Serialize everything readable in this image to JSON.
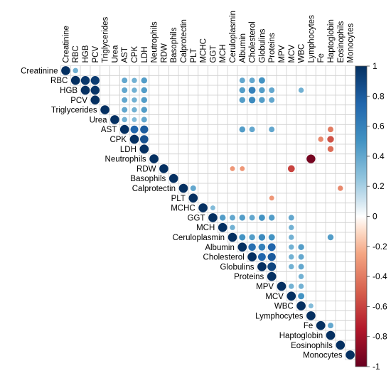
{
  "chart_data": {
    "type": "heatmap",
    "style": "upper-triangle correlation plot with circles sized and colored by coefficient",
    "variables": [
      "Creatinine",
      "RBC",
      "HGB",
      "PCV",
      "Triglycerides",
      "Urea",
      "AST",
      "CPK",
      "LDH",
      "Neutrophils",
      "RDW",
      "Basophils",
      "Calprotectin",
      "PLT",
      "MCHC",
      "GGT",
      "MCH",
      "Ceruloplasmin",
      "Albumin",
      "Cholesterol",
      "Globulins",
      "Proteins",
      "MPV",
      "MCV",
      "WBC",
      "Lymphocytes",
      "Fe",
      "Haptoglobin",
      "Eosinophils",
      "Monocytes"
    ],
    "correlations": [
      {
        "row": "Creatinine",
        "col": "Creatinine",
        "r": 1.0
      },
      {
        "row": "Creatinine",
        "col": "RBC",
        "r": 0.35
      },
      {
        "row": "RBC",
        "col": "RBC",
        "r": 1.0
      },
      {
        "row": "RBC",
        "col": "HGB",
        "r": 0.97
      },
      {
        "row": "RBC",
        "col": "PCV",
        "r": 0.95
      },
      {
        "row": "RBC",
        "col": "AST",
        "r": 0.4
      },
      {
        "row": "RBC",
        "col": "CPK",
        "r": 0.35
      },
      {
        "row": "RBC",
        "col": "LDH",
        "r": 0.45
      },
      {
        "row": "RBC",
        "col": "Albumin",
        "r": 0.4
      },
      {
        "row": "RBC",
        "col": "Cholesterol",
        "r": 0.4
      },
      {
        "row": "RBC",
        "col": "Globulins",
        "r": 0.5
      },
      {
        "row": "HGB",
        "col": "HGB",
        "r": 1.0
      },
      {
        "row": "HGB",
        "col": "PCV",
        "r": 0.98
      },
      {
        "row": "HGB",
        "col": "AST",
        "r": 0.4
      },
      {
        "row": "HGB",
        "col": "CPK",
        "r": 0.35
      },
      {
        "row": "HGB",
        "col": "LDH",
        "r": 0.45
      },
      {
        "row": "HGB",
        "col": "Albumin",
        "r": 0.45
      },
      {
        "row": "HGB",
        "col": "Cholesterol",
        "r": 0.6
      },
      {
        "row": "HGB",
        "col": "Globulins",
        "r": 0.45
      },
      {
        "row": "HGB",
        "col": "Proteins",
        "r": 0.4
      },
      {
        "row": "HGB",
        "col": "WBC",
        "r": 0.35
      },
      {
        "row": "PCV",
        "col": "PCV",
        "r": 1.0
      },
      {
        "row": "PCV",
        "col": "AST",
        "r": 0.4
      },
      {
        "row": "PCV",
        "col": "CPK",
        "r": 0.35
      },
      {
        "row": "PCV",
        "col": "LDH",
        "r": 0.45
      },
      {
        "row": "PCV",
        "col": "Albumin",
        "r": 0.45
      },
      {
        "row": "PCV",
        "col": "Cholesterol",
        "r": 0.55
      },
      {
        "row": "PCV",
        "col": "Globulins",
        "r": 0.45
      },
      {
        "row": "PCV",
        "col": "Proteins",
        "r": 0.4
      },
      {
        "row": "Triglycerides",
        "col": "Triglycerides",
        "r": 1.0
      },
      {
        "row": "Triglycerides",
        "col": "AST",
        "r": 0.4
      },
      {
        "row": "Triglycerides",
        "col": "CPK",
        "r": 0.35
      },
      {
        "row": "Triglycerides",
        "col": "LDH",
        "r": 0.45
      },
      {
        "row": "Urea",
        "col": "Urea",
        "r": 1.0
      },
      {
        "row": "Urea",
        "col": "AST",
        "r": 0.35
      },
      {
        "row": "Urea",
        "col": "CPK",
        "r": 0.3
      },
      {
        "row": "Urea",
        "col": "LDH",
        "r": 0.4
      },
      {
        "row": "AST",
        "col": "AST",
        "r": 1.0
      },
      {
        "row": "AST",
        "col": "CPK",
        "r": 0.75
      },
      {
        "row": "AST",
        "col": "LDH",
        "r": 0.8
      },
      {
        "row": "AST",
        "col": "Albumin",
        "r": 0.45
      },
      {
        "row": "AST",
        "col": "Cholesterol",
        "r": 0.4
      },
      {
        "row": "AST",
        "col": "Proteins",
        "r": 0.4
      },
      {
        "row": "AST",
        "col": "Haptoglobin",
        "r": -0.4
      },
      {
        "row": "CPK",
        "col": "CPK",
        "r": 1.0
      },
      {
        "row": "CPK",
        "col": "LDH",
        "r": 0.85
      },
      {
        "row": "CPK",
        "col": "Fe",
        "r": -0.35
      },
      {
        "row": "CPK",
        "col": "Haptoglobin",
        "r": -0.55
      },
      {
        "row": "LDH",
        "col": "LDH",
        "r": 1.0
      },
      {
        "row": "LDH",
        "col": "Haptoglobin",
        "r": -0.45
      },
      {
        "row": "Neutrophils",
        "col": "Neutrophils",
        "r": 1.0
      },
      {
        "row": "Neutrophils",
        "col": "Lymphocytes",
        "r": -0.95
      },
      {
        "row": "RDW",
        "col": "RDW",
        "r": 1.0
      },
      {
        "row": "RDW",
        "col": "Ceruloplasmin",
        "r": -0.3
      },
      {
        "row": "RDW",
        "col": "Albumin",
        "r": -0.3
      },
      {
        "row": "RDW",
        "col": "MCV",
        "r": -0.6
      },
      {
        "row": "Basophils",
        "col": "Basophils",
        "r": 1.0
      },
      {
        "row": "Calprotectin",
        "col": "Calprotectin",
        "r": 1.0
      },
      {
        "row": "Calprotectin",
        "col": "PLT",
        "r": 0.4
      },
      {
        "row": "Calprotectin",
        "col": "Eosinophils",
        "r": -0.35
      },
      {
        "row": "PLT",
        "col": "PLT",
        "r": 1.0
      },
      {
        "row": "PLT",
        "col": "Proteins",
        "r": -0.3
      },
      {
        "row": "MCHC",
        "col": "MCHC",
        "r": 1.0
      },
      {
        "row": "MCHC",
        "col": "GGT",
        "r": 0.3
      },
      {
        "row": "GGT",
        "col": "GGT",
        "r": 1.0
      },
      {
        "row": "GGT",
        "col": "MCH",
        "r": 0.45
      },
      {
        "row": "GGT",
        "col": "Ceruloplasmin",
        "r": 0.4
      },
      {
        "row": "GGT",
        "col": "Albumin",
        "r": 0.45
      },
      {
        "row": "GGT",
        "col": "Cholesterol",
        "r": 0.4
      },
      {
        "row": "GGT",
        "col": "Globulins",
        "r": 0.5
      },
      {
        "row": "GGT",
        "col": "Proteins",
        "r": 0.45
      },
      {
        "row": "GGT",
        "col": "MCV",
        "r": 0.4
      },
      {
        "row": "MCH",
        "col": "MCH",
        "r": 1.0
      },
      {
        "row": "MCH",
        "col": "Ceruloplasmin",
        "r": 0.35
      },
      {
        "row": "MCH",
        "col": "MCV",
        "r": 0.35
      },
      {
        "row": "Ceruloplasmin",
        "col": "Ceruloplasmin",
        "r": 1.0
      },
      {
        "row": "Ceruloplasmin",
        "col": "Albumin",
        "r": 0.5
      },
      {
        "row": "Ceruloplasmin",
        "col": "Cholesterol",
        "r": 0.45
      },
      {
        "row": "Ceruloplasmin",
        "col": "Globulins",
        "r": 0.55
      },
      {
        "row": "Ceruloplasmin",
        "col": "Proteins",
        "r": 0.5
      },
      {
        "row": "Ceruloplasmin",
        "col": "MCV",
        "r": 0.35
      },
      {
        "row": "Ceruloplasmin",
        "col": "Haptoglobin",
        "r": 0.45
      },
      {
        "row": "Albumin",
        "col": "Albumin",
        "r": 1.0
      },
      {
        "row": "Albumin",
        "col": "Cholesterol",
        "r": 0.7
      },
      {
        "row": "Albumin",
        "col": "Globulins",
        "r": 0.6
      },
      {
        "row": "Albumin",
        "col": "Proteins",
        "r": 0.75
      },
      {
        "row": "Albumin",
        "col": "MCV",
        "r": 0.35
      },
      {
        "row": "Albumin",
        "col": "WBC",
        "r": 0.45
      },
      {
        "row": "Cholesterol",
        "col": "Cholesterol",
        "r": 1.0
      },
      {
        "row": "Cholesterol",
        "col": "Globulins",
        "r": 0.75
      },
      {
        "row": "Cholesterol",
        "col": "Proteins",
        "r": 0.8
      },
      {
        "row": "Cholesterol",
        "col": "MCV",
        "r": 0.35
      },
      {
        "row": "Cholesterol",
        "col": "WBC",
        "r": 0.4
      },
      {
        "row": "Globulins",
        "col": "Globulins",
        "r": 1.0
      },
      {
        "row": "Globulins",
        "col": "Proteins",
        "r": 0.9
      },
      {
        "row": "Globulins",
        "col": "MCV",
        "r": 0.35
      },
      {
        "row": "Globulins",
        "col": "WBC",
        "r": 0.4
      },
      {
        "row": "Proteins",
        "col": "Proteins",
        "r": 1.0
      },
      {
        "row": "Proteins",
        "col": "WBC",
        "r": 0.35
      },
      {
        "row": "MPV",
        "col": "MPV",
        "r": 1.0
      },
      {
        "row": "MPV",
        "col": "MCV",
        "r": 0.35
      },
      {
        "row": "MPV",
        "col": "WBC",
        "r": 0.35
      },
      {
        "row": "MCV",
        "col": "MCV",
        "r": 1.0
      },
      {
        "row": "MCV",
        "col": "WBC",
        "r": 0.5
      },
      {
        "row": "WBC",
        "col": "WBC",
        "r": 1.0
      },
      {
        "row": "WBC",
        "col": "Lymphocytes",
        "r": 0.3
      },
      {
        "row": "Lymphocytes",
        "col": "Lymphocytes",
        "r": 1.0
      },
      {
        "row": "Fe",
        "col": "Fe",
        "r": 1.0
      },
      {
        "row": "Fe",
        "col": "Haptoglobin",
        "r": 0.4
      },
      {
        "row": "Haptoglobin",
        "col": "Haptoglobin",
        "r": 1.0
      },
      {
        "row": "Eosinophils",
        "col": "Eosinophils",
        "r": 1.0
      },
      {
        "row": "Monocytes",
        "col": "Monocytes",
        "r": 1.0
      }
    ],
    "colorbar": {
      "range": [
        -1,
        1
      ],
      "ticks": [
        "-1",
        "-0.8",
        "-0.6",
        "-0.4",
        "-0.2",
        "0",
        "0.2",
        "0.4",
        "0.6",
        "0.8",
        "1"
      ],
      "colors": {
        "negative": "#67001F",
        "mid_negative": "#D6604D",
        "zero": "#FFFFFF",
        "mid_positive": "#4393C3",
        "positive": "#053061"
      }
    },
    "grid": true,
    "legend": "right"
  }
}
